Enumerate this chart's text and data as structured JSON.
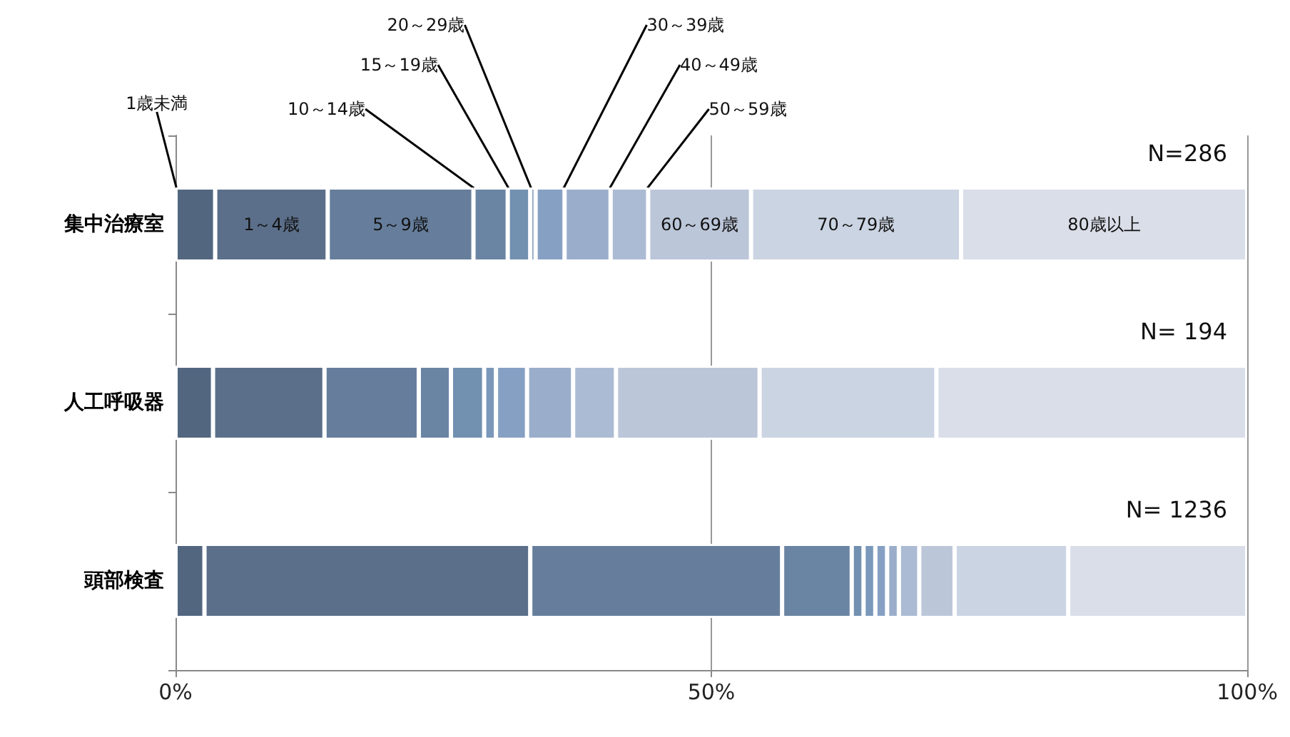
{
  "chart_data": {
    "type": "bar",
    "orientation": "horizontal",
    "stacked": true,
    "categories": [
      "集中治療室",
      "人工呼吸器",
      "頭部検査"
    ],
    "series": [
      {
        "name": "1歳未満",
        "color": "#536680",
        "values": [
          3.7,
          3.5,
          2.7
        ]
      },
      {
        "name": "1～4歳",
        "color": "#5b6f8a",
        "values": [
          10.5,
          10.4,
          30.4
        ]
      },
      {
        "name": "5～9歳",
        "color": "#667e9c",
        "values": [
          13.6,
          8.8,
          23.5
        ]
      },
      {
        "name": "10～14歳",
        "color": "#6a84a3",
        "values": [
          3.2,
          3.0,
          6.5
        ]
      },
      {
        "name": "15～19歳",
        "color": "#7290b0",
        "values": [
          2.1,
          3.1,
          1.1
        ]
      },
      {
        "name": "20～29歳",
        "color": "#7a98ba",
        "values": [
          0.5,
          1.1,
          1.1
        ]
      },
      {
        "name": "30～39歳",
        "color": "#86a0c3",
        "values": [
          2.7,
          2.9,
          1.1
        ]
      },
      {
        "name": "40～49歳",
        "color": "#9aaecb",
        "values": [
          4.3,
          4.3,
          1.1
        ]
      },
      {
        "name": "50～59歳",
        "color": "#abbbd3",
        "values": [
          3.5,
          4.0,
          1.9
        ]
      },
      {
        "name": "60～69歳",
        "color": "#bcc6d9",
        "values": [
          9.6,
          13.4,
          3.3
        ]
      },
      {
        "name": "70～79歳",
        "color": "#cbd4e2",
        "values": [
          19.6,
          16.5,
          10.6
        ]
      },
      {
        "name": "80歳以上",
        "color": "#d9dee9",
        "values": [
          26.7,
          29.0,
          16.7
        ]
      }
    ],
    "xlim": [
      0,
      100
    ],
    "xticks": [
      {
        "value": 0,
        "label": "0%"
      },
      {
        "value": 50,
        "label": "50%"
      },
      {
        "value": 100,
        "label": "100%"
      }
    ],
    "grid": "x",
    "legend": false,
    "annotations": [
      "N=286",
      "N= 194",
      "N= 1236"
    ]
  }
}
